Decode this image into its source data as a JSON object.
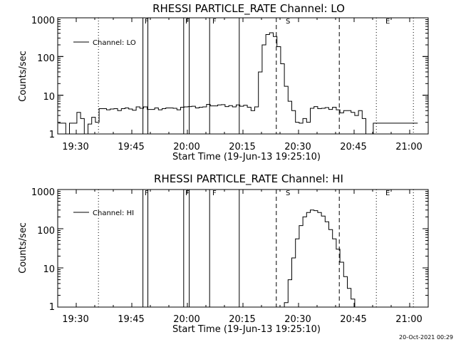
{
  "chart_data": [
    {
      "type": "line",
      "title": "RHESSI PARTICLE_RATE Channel: LO",
      "xlabel": "Start Time (19-Jun-13 19:25:10)",
      "ylabel": "Counts/sec",
      "yscale": "log",
      "ylim": [
        1,
        1000
      ],
      "xlim": [
        "19:25",
        "21:05"
      ],
      "x_ticks": [
        "19:30",
        "19:45",
        "20:00",
        "20:15",
        "20:30",
        "20:45",
        "21:00"
      ],
      "y_ticks": [
        "1",
        "10",
        "100",
        "1000"
      ],
      "legend": {
        "label": "Channel: LO",
        "placement": "top-left"
      },
      "series": [
        {
          "name": "Channel: LO",
          "x_minutes": [
            0,
            1,
            2,
            3,
            4,
            5,
            6,
            7,
            8,
            9,
            10,
            11,
            12,
            13,
            14,
            15,
            16,
            17,
            18,
            19,
            20,
            21,
            22,
            23,
            24,
            25,
            26,
            27,
            28,
            29,
            30,
            31,
            32,
            33,
            34,
            35,
            36,
            37,
            38,
            39,
            40,
            41,
            42,
            43,
            44,
            45,
            46,
            47,
            48,
            49,
            50,
            51,
            52,
            53,
            54,
            55,
            56,
            57,
            58,
            59,
            60,
            61,
            62,
            63,
            64,
            65,
            66,
            67,
            68,
            69,
            70,
            71,
            72,
            73,
            74,
            75,
            76,
            77,
            78,
            79,
            80,
            81,
            82,
            83,
            84,
            85,
            86,
            87,
            88,
            89,
            90,
            91,
            92,
            93,
            94,
            95,
            96
          ],
          "y": [
            1.9,
            1.9,
            1.0,
            1.9,
            1.9,
            3.6,
            2.5,
            1.0,
            1.8,
            2.7,
            2.0,
            4.5,
            4.5,
            4.2,
            4.4,
            4.5,
            4.0,
            4.5,
            4.7,
            4.4,
            4.1,
            5.0,
            4.6,
            5.0,
            4.3,
            4.3,
            4.7,
            4.2,
            4.5,
            4.7,
            4.7,
            4.6,
            4.2,
            4.9,
            5.0,
            5.1,
            5.2,
            4.7,
            4.9,
            5.0,
            5.8,
            5.3,
            5.3,
            5.6,
            5.7,
            5.1,
            5.4,
            5.0,
            5.6,
            5.2,
            5.5,
            4.9,
            4.0,
            5.0,
            40,
            200,
            370,
            410,
            330,
            180,
            65,
            17,
            7.0,
            4.0,
            2.0,
            1.9,
            2.5,
            2.0,
            4.6,
            5.1,
            4.5,
            4.6,
            4.8,
            4.3,
            4.9,
            4.2,
            3.5,
            4.0,
            4.0,
            3.6,
            3.0,
            4.0,
            2.5,
            1.0,
            1.0,
            1.9,
            1.9,
            1.9,
            1.9,
            1.9,
            1.9,
            1.9,
            1.9,
            1.9,
            1.9,
            1.9,
            1.9
          ]
        }
      ],
      "event_markers": [
        {
          "label": "F",
          "x": "19:48",
          "style": "solid"
        },
        {
          "label": "",
          "x": "19:49:20",
          "style": "solid"
        },
        {
          "label": "F",
          "x": "19:59",
          "style": "solid"
        },
        {
          "label": "",
          "x": "20:00:30",
          "style": "solid"
        },
        {
          "label": "F",
          "x": "20:06",
          "style": "solid"
        },
        {
          "label": "",
          "x": "20:14",
          "style": "solid"
        },
        {
          "label": "S",
          "x": "20:24",
          "style": "dashed"
        },
        {
          "label": "",
          "x": "20:41",
          "style": "dashed"
        },
        {
          "label": "",
          "x": "19:36",
          "style": "dotted"
        },
        {
          "label": "E",
          "x": "20:51",
          "style": "dotted"
        },
        {
          "label": "",
          "x": "21:01",
          "style": "dotted"
        }
      ]
    },
    {
      "type": "line",
      "title": "RHESSI PARTICLE_RATE Channel: HI",
      "xlabel": "Start Time (19-Jun-13 19:25:10)",
      "ylabel": "Counts/sec",
      "yscale": "log",
      "ylim": [
        1,
        1000
      ],
      "xlim": [
        "19:25",
        "21:05"
      ],
      "x_ticks": [
        "19:30",
        "19:45",
        "20:00",
        "20:15",
        "20:30",
        "20:45",
        "21:00"
      ],
      "y_ticks": [
        "1",
        "10",
        "100",
        "1000"
      ],
      "legend": {
        "label": "Channel: HI",
        "placement": "top-left"
      },
      "series": [
        {
          "name": "Channel: HI",
          "x_minutes": [
            60,
            61,
            62,
            63,
            64,
            65,
            66,
            67,
            68,
            69,
            70,
            71,
            72,
            73,
            74,
            75,
            76,
            77,
            78,
            79,
            80
          ],
          "y": [
            1.0,
            1.3,
            5.0,
            18,
            55,
            120,
            200,
            260,
            300,
            290,
            260,
            210,
            150,
            95,
            55,
            30,
            14,
            6.0,
            3.0,
            1.6,
            1.0
          ]
        }
      ],
      "event_markers": [
        {
          "label": "F",
          "x": "19:48",
          "style": "solid"
        },
        {
          "label": "",
          "x": "19:49:20",
          "style": "solid"
        },
        {
          "label": "F",
          "x": "19:59",
          "style": "solid"
        },
        {
          "label": "",
          "x": "20:00:30",
          "style": "solid"
        },
        {
          "label": "F",
          "x": "20:06",
          "style": "solid"
        },
        {
          "label": "",
          "x": "20:14",
          "style": "solid"
        },
        {
          "label": "S",
          "x": "20:24",
          "style": "dashed"
        },
        {
          "label": "",
          "x": "20:41",
          "style": "dashed"
        },
        {
          "label": "",
          "x": "19:36",
          "style": "dotted"
        },
        {
          "label": "E",
          "x": "20:51",
          "style": "dotted"
        },
        {
          "label": "",
          "x": "21:01",
          "style": "dotted"
        }
      ]
    }
  ],
  "footer": {
    "timestamp": "20-Oct-2021 00:29"
  }
}
